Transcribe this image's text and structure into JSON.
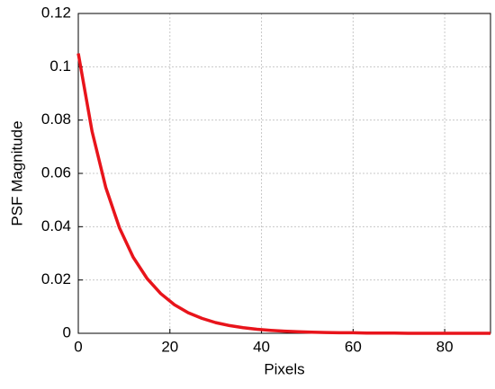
{
  "chart_data": {
    "type": "line",
    "xlabel": "Pixels",
    "ylabel": "PSF Magnitude",
    "x": [
      0,
      3,
      6,
      9,
      12,
      15,
      18,
      21,
      24,
      27,
      30,
      33,
      36,
      39,
      42,
      45,
      48,
      51,
      54,
      57,
      60,
      63,
      66,
      69,
      72,
      75,
      78,
      81,
      84,
      87,
      90
    ],
    "series": [
      {
        "color": "#e8141b",
        "values": [
          0.105,
          0.0758,
          0.0547,
          0.0395,
          0.0285,
          0.0206,
          0.0149,
          0.0107,
          0.0077,
          0.0056,
          0.004,
          0.0029,
          0.0021,
          0.0015,
          0.0011,
          0.0008,
          0.0006,
          0.0004,
          0.0003,
          0.0002,
          0.0002,
          0.0001,
          0.0001,
          0.0001,
          0,
          0,
          0,
          0,
          0,
          0,
          0
        ]
      }
    ],
    "xlim": [
      0,
      90
    ],
    "xticks": [
      0,
      20,
      40,
      60,
      80
    ],
    "ylim": [
      0,
      0.12
    ],
    "yticks": [
      0,
      0.02,
      0.04,
      0.06,
      0.08,
      0.1,
      0.12
    ],
    "grid": true
  }
}
